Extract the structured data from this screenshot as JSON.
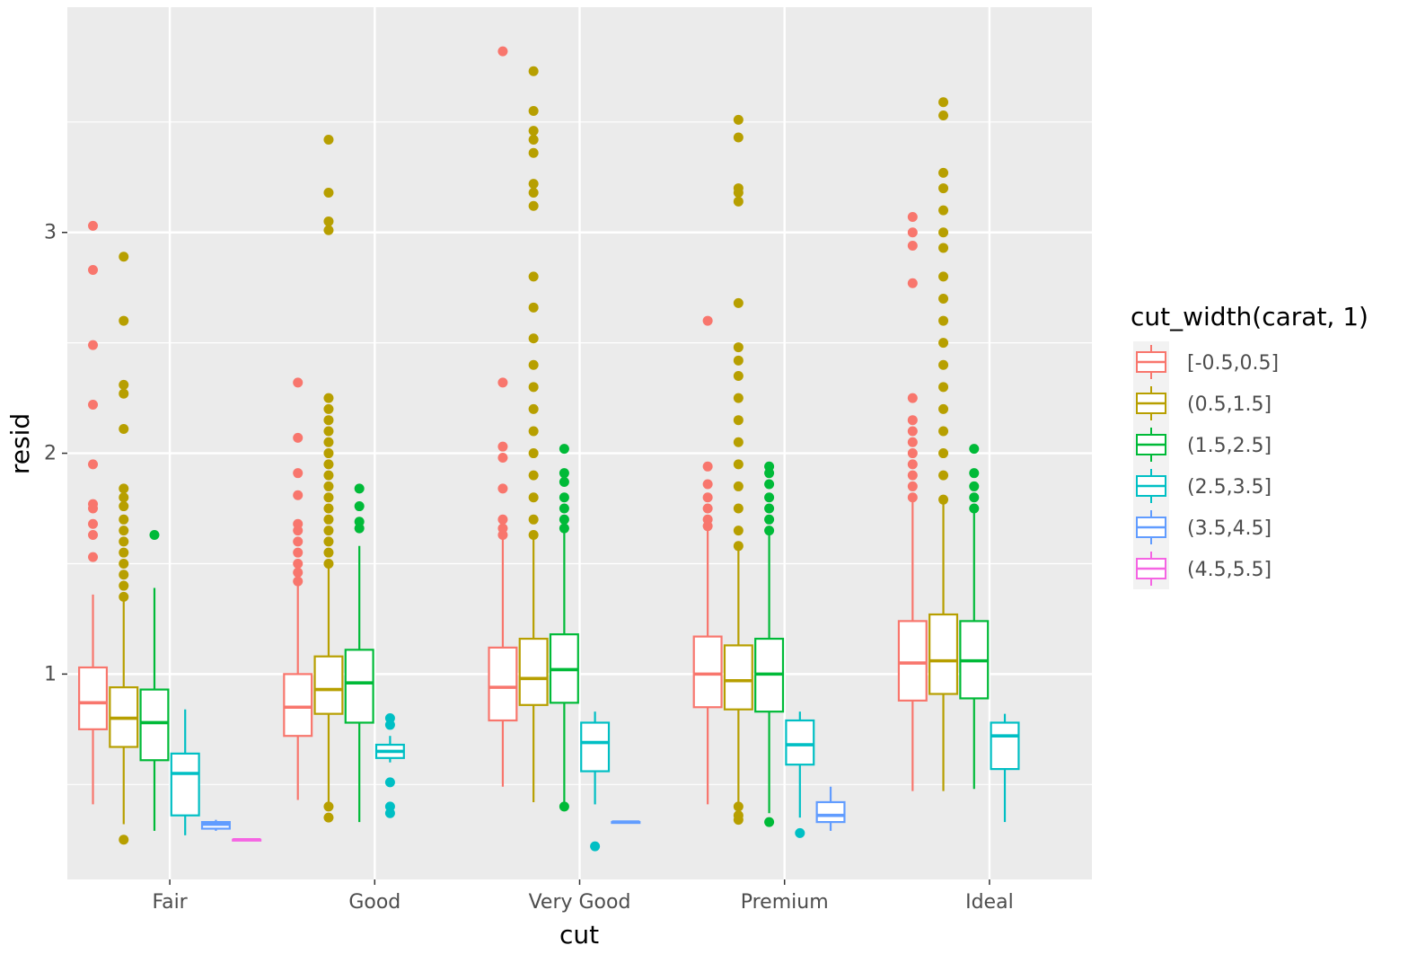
{
  "chart_data": {
    "type": "boxplot",
    "title": "",
    "xlabel": "cut",
    "ylabel": "resid",
    "ylim": [
      0.07,
      4.02
    ],
    "y_ticks": [
      1,
      2,
      3
    ],
    "y_tick_labels": [
      "1",
      "2",
      "3"
    ],
    "categories": [
      "Fair",
      "Good",
      "Very Good",
      "Premium",
      "Ideal"
    ],
    "legend": {
      "title": "cut_width(carat, 1)",
      "position": "right",
      "entries": [
        {
          "label": "[-0.5,0.5]",
          "color": "#F8766D"
        },
        {
          "label": "(0.5,1.5]",
          "color": "#B79F00"
        },
        {
          "label": "(1.5,2.5]",
          "color": "#00BA38"
        },
        {
          "label": "(2.5,3.5]",
          "color": "#00BFC4"
        },
        {
          "label": "(3.5,4.5]",
          "color": "#619CFF"
        },
        {
          "label": "(4.5,5.5]",
          "color": "#F564E3"
        }
      ]
    },
    "series": [
      {
        "category": "Fair",
        "group": 0,
        "whisker_low": 0.41,
        "q1": 0.75,
        "median": 0.87,
        "q3": 1.03,
        "whisker_high": 1.36,
        "outliers": [
          1.53,
          1.63,
          1.68,
          1.75,
          1.77,
          1.95,
          2.22,
          2.49,
          2.83,
          3.03
        ]
      },
      {
        "category": "Fair",
        "group": 1,
        "whisker_low": 0.32,
        "q1": 0.67,
        "median": 0.8,
        "q3": 0.94,
        "whisker_high": 1.33,
        "outliers": [
          1.35,
          1.4,
          1.45,
          1.5,
          1.55,
          1.6,
          1.65,
          1.7,
          1.76,
          1.8,
          1.84,
          2.11,
          2.27,
          2.31,
          2.6,
          2.89,
          0.25
        ]
      },
      {
        "category": "Fair",
        "group": 2,
        "whisker_low": 0.29,
        "q1": 0.61,
        "median": 0.78,
        "q3": 0.93,
        "whisker_high": 1.39,
        "outliers": [
          1.63
        ]
      },
      {
        "category": "Fair",
        "group": 3,
        "whisker_low": 0.27,
        "q1": 0.36,
        "median": 0.55,
        "q3": 0.64,
        "whisker_high": 0.84,
        "outliers": []
      },
      {
        "category": "Fair",
        "group": 4,
        "whisker_low": 0.29,
        "q1": 0.3,
        "median": 0.32,
        "q3": 0.33,
        "whisker_high": 0.34,
        "outliers": []
      },
      {
        "category": "Fair",
        "group": 5,
        "whisker_low": 0.25,
        "q1": 0.25,
        "median": 0.25,
        "q3": 0.25,
        "whisker_high": 0.25,
        "outliers": []
      },
      {
        "category": "Good",
        "group": 0,
        "whisker_low": 0.43,
        "q1": 0.72,
        "median": 0.85,
        "q3": 1.0,
        "whisker_high": 1.4,
        "outliers": [
          1.42,
          1.46,
          1.5,
          1.55,
          1.6,
          1.65,
          1.68,
          1.81,
          1.91,
          2.07,
          2.32
        ]
      },
      {
        "category": "Good",
        "group": 1,
        "whisker_low": 0.42,
        "q1": 0.82,
        "median": 0.93,
        "q3": 1.08,
        "whisker_high": 1.48,
        "outliers": [
          1.5,
          1.55,
          1.6,
          1.65,
          1.7,
          1.75,
          1.8,
          1.85,
          1.9,
          1.95,
          2.0,
          2.05,
          2.1,
          2.15,
          2.2,
          2.25,
          3.01,
          3.05,
          3.18,
          3.42,
          0.4,
          0.35
        ]
      },
      {
        "category": "Good",
        "group": 2,
        "whisker_low": 0.33,
        "q1": 0.78,
        "median": 0.96,
        "q3": 1.11,
        "whisker_high": 1.58,
        "outliers": [
          1.66,
          1.69,
          1.76,
          1.84
        ]
      },
      {
        "category": "Good",
        "group": 3,
        "whisker_low": 0.6,
        "q1": 0.62,
        "median": 0.65,
        "q3": 0.68,
        "whisker_high": 0.72,
        "outliers": [
          0.77,
          0.8,
          0.51,
          0.4,
          0.37
        ]
      },
      {
        "category": "Very Good",
        "group": 0,
        "whisker_low": 0.49,
        "q1": 0.79,
        "median": 0.94,
        "q3": 1.12,
        "whisker_high": 1.61,
        "outliers": [
          1.63,
          1.66,
          1.7,
          1.84,
          1.98,
          2.03,
          2.32,
          3.82
        ]
      },
      {
        "category": "Very Good",
        "group": 1,
        "whisker_low": 0.42,
        "q1": 0.86,
        "median": 0.98,
        "q3": 1.16,
        "whisker_high": 1.61,
        "outliers": [
          1.63,
          1.7,
          1.8,
          1.9,
          2.0,
          2.1,
          2.2,
          2.3,
          2.4,
          2.52,
          2.66,
          2.8,
          3.12,
          3.18,
          3.22,
          3.36,
          3.42,
          3.46,
          3.55,
          3.73
        ]
      },
      {
        "category": "Very Good",
        "group": 2,
        "whisker_low": 0.41,
        "q1": 0.87,
        "median": 1.02,
        "q3": 1.18,
        "whisker_high": 1.64,
        "outliers": [
          1.66,
          1.7,
          1.75,
          1.8,
          1.87,
          1.91,
          2.02,
          0.4
        ]
      },
      {
        "category": "Very Good",
        "group": 3,
        "whisker_low": 0.41,
        "q1": 0.56,
        "median": 0.69,
        "q3": 0.78,
        "whisker_high": 0.83,
        "outliers": [
          0.22
        ]
      },
      {
        "category": "Very Good",
        "group": 4,
        "whisker_low": 0.33,
        "q1": 0.33,
        "median": 0.33,
        "q3": 0.33,
        "whisker_high": 0.33,
        "outliers": []
      },
      {
        "category": "Premium",
        "group": 0,
        "whisker_low": 0.41,
        "q1": 0.85,
        "median": 1.0,
        "q3": 1.17,
        "whisker_high": 1.65,
        "outliers": [
          1.67,
          1.7,
          1.75,
          1.8,
          1.86,
          1.94,
          2.6
        ]
      },
      {
        "category": "Premium",
        "group": 1,
        "whisker_low": 0.41,
        "q1": 0.84,
        "median": 0.97,
        "q3": 1.13,
        "whisker_high": 1.57,
        "outliers": [
          1.58,
          1.65,
          1.75,
          1.85,
          1.95,
          2.05,
          2.15,
          2.25,
          2.35,
          2.42,
          2.48,
          2.68,
          3.14,
          3.18,
          3.2,
          3.43,
          3.51,
          0.4,
          0.36,
          0.34
        ]
      },
      {
        "category": "Premium",
        "group": 2,
        "whisker_low": 0.37,
        "q1": 0.83,
        "median": 1.0,
        "q3": 1.16,
        "whisker_high": 1.63,
        "outliers": [
          1.65,
          1.7,
          1.75,
          1.8,
          1.86,
          1.91,
          1.94,
          0.33
        ]
      },
      {
        "category": "Premium",
        "group": 3,
        "whisker_low": 0.35,
        "q1": 0.59,
        "median": 0.68,
        "q3": 0.79,
        "whisker_high": 0.83,
        "outliers": [
          0.28
        ]
      },
      {
        "category": "Premium",
        "group": 4,
        "whisker_low": 0.29,
        "q1": 0.33,
        "median": 0.36,
        "q3": 0.42,
        "whisker_high": 0.49,
        "outliers": []
      },
      {
        "category": "Ideal",
        "group": 0,
        "whisker_low": 0.47,
        "q1": 0.88,
        "median": 1.05,
        "q3": 1.24,
        "whisker_high": 1.78,
        "outliers": [
          1.8,
          1.85,
          1.9,
          1.95,
          2.0,
          2.05,
          2.1,
          2.15,
          2.25,
          2.77,
          2.94,
          3.0,
          3.07
        ]
      },
      {
        "category": "Ideal",
        "group": 1,
        "whisker_low": 0.47,
        "q1": 0.91,
        "median": 1.06,
        "q3": 1.27,
        "whisker_high": 1.77,
        "outliers": [
          1.79,
          1.9,
          2.0,
          2.1,
          2.2,
          2.3,
          2.4,
          2.5,
          2.6,
          2.7,
          2.8,
          2.93,
          3.0,
          3.1,
          3.2,
          3.27,
          3.53,
          3.59
        ]
      },
      {
        "category": "Ideal",
        "group": 2,
        "whisker_low": 0.48,
        "q1": 0.89,
        "median": 1.06,
        "q3": 1.24,
        "whisker_high": 1.73,
        "outliers": [
          1.75,
          1.8,
          1.85,
          1.91,
          2.02
        ]
      },
      {
        "category": "Ideal",
        "group": 3,
        "whisker_low": 0.33,
        "q1": 0.57,
        "median": 0.72,
        "q3": 0.78,
        "whisker_high": 0.82,
        "outliers": []
      }
    ]
  }
}
